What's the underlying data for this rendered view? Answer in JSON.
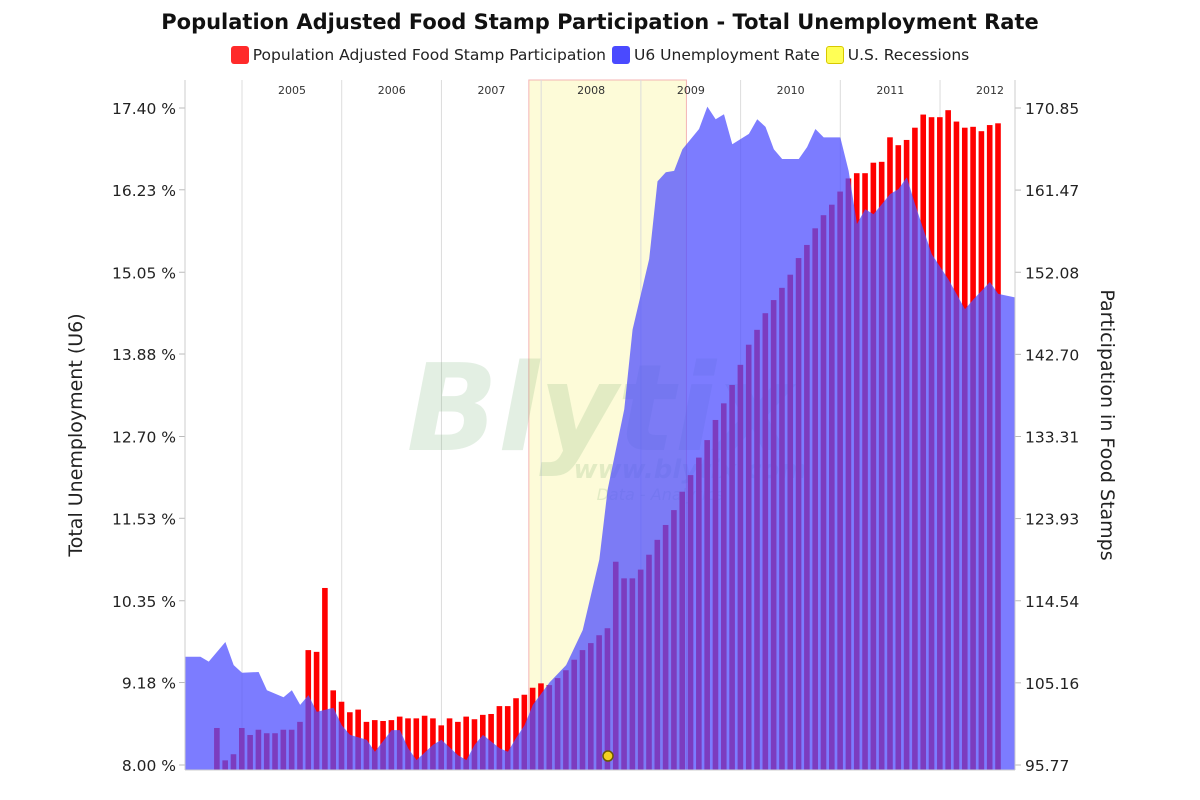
{
  "chart_data": {
    "type": "bar+area",
    "title": "Population Adjusted Food Stamp Participation - Total Unemployment Rate",
    "legend_placement": "top",
    "legend": [
      {
        "label": "Population Adjusted Food Stamp Participation",
        "color": "#ff2a2a"
      },
      {
        "label": "U6 Unemployment Rate",
        "color": "#4a4aff"
      },
      {
        "label": "U.S. Recessions",
        "color": "#ffff55"
      }
    ],
    "left_axis": {
      "label": "Total Unemployment (U6)",
      "range": [
        8.0,
        17.4
      ],
      "ticks": [
        "8.00 %",
        "9.18 %",
        "10.35 %",
        "11.53 %",
        "12.70 %",
        "13.88 %",
        "15.05 %",
        "16.23 %",
        "17.40 %"
      ]
    },
    "right_axis": {
      "label": "Participation in Food Stamps",
      "range": [
        95.77,
        170.85
      ],
      "ticks": [
        "95.77",
        "105.16",
        "114.54",
        "123.93",
        "133.31",
        "142.70",
        "152.08",
        "161.47",
        "170.85"
      ]
    },
    "x_axis": {
      "range": [
        "2004-06",
        "2012-10"
      ],
      "year_labels": [
        "2005",
        "2006",
        "2007",
        "2008",
        "2009",
        "2010",
        "2011",
        "2012"
      ]
    },
    "grid": true,
    "recession": {
      "start": "2007-12",
      "end": "2009-06"
    },
    "colors": {
      "bars": "#ff0000",
      "area": "#5050ff",
      "recession": "#fdfbd8",
      "recession_border": "#f4b4b4"
    },
    "food_stamp_participation": [
      [
        "2004-10",
        100.0
      ],
      [
        "2004-11",
        96.3
      ],
      [
        "2004-12",
        97.0
      ],
      [
        "2005-01",
        100.0
      ],
      [
        "2005-02",
        99.2
      ],
      [
        "2005-03",
        99.8
      ],
      [
        "2005-04",
        99.4
      ],
      [
        "2005-05",
        99.4
      ],
      [
        "2005-06",
        99.8
      ],
      [
        "2005-07",
        99.8
      ],
      [
        "2005-08",
        100.7
      ],
      [
        "2005-09",
        108.9
      ],
      [
        "2005-10",
        108.7
      ],
      [
        "2005-11",
        116.0
      ],
      [
        "2005-12",
        104.3
      ],
      [
        "2006-01",
        103.0
      ],
      [
        "2006-02",
        101.8
      ],
      [
        "2006-03",
        102.1
      ],
      [
        "2006-04",
        100.7
      ],
      [
        "2006-05",
        100.9
      ],
      [
        "2006-06",
        100.8
      ],
      [
        "2006-07",
        100.9
      ],
      [
        "2006-08",
        101.3
      ],
      [
        "2006-09",
        101.1
      ],
      [
        "2006-10",
        101.1
      ],
      [
        "2006-11",
        101.4
      ],
      [
        "2006-12",
        101.1
      ],
      [
        "2007-01",
        100.3
      ],
      [
        "2007-02",
        101.1
      ],
      [
        "2007-03",
        100.7
      ],
      [
        "2007-04",
        101.3
      ],
      [
        "2007-05",
        101.0
      ],
      [
        "2007-06",
        101.5
      ],
      [
        "2007-07",
        101.6
      ],
      [
        "2007-08",
        102.5
      ],
      [
        "2007-09",
        102.5
      ],
      [
        "2007-10",
        103.4
      ],
      [
        "2007-11",
        103.8
      ],
      [
        "2007-12",
        104.6
      ],
      [
        "2008-01",
        105.1
      ],
      [
        "2008-02",
        104.9
      ],
      [
        "2008-03",
        105.7
      ],
      [
        "2008-04",
        106.6
      ],
      [
        "2008-05",
        107.8
      ],
      [
        "2008-06",
        108.9
      ],
      [
        "2008-07",
        109.7
      ],
      [
        "2008-08",
        110.6
      ],
      [
        "2008-09",
        111.4
      ],
      [
        "2008-10",
        119.0
      ],
      [
        "2008-11",
        117.1
      ],
      [
        "2008-12",
        117.1
      ],
      [
        "2009-01",
        118.1
      ],
      [
        "2009-02",
        119.8
      ],
      [
        "2009-03",
        121.5
      ],
      [
        "2009-04",
        123.2
      ],
      [
        "2009-05",
        124.9
      ],
      [
        "2009-06",
        127.0
      ],
      [
        "2009-07",
        128.9
      ],
      [
        "2009-08",
        130.9
      ],
      [
        "2009-09",
        132.9
      ],
      [
        "2009-10",
        135.2
      ],
      [
        "2009-11",
        137.1
      ],
      [
        "2009-12",
        139.2
      ],
      [
        "2010-01",
        141.5
      ],
      [
        "2010-02",
        143.8
      ],
      [
        "2010-03",
        145.5
      ],
      [
        "2010-04",
        147.4
      ],
      [
        "2010-05",
        148.9
      ],
      [
        "2010-06",
        150.3
      ],
      [
        "2010-07",
        151.8
      ],
      [
        "2010-08",
        153.7
      ],
      [
        "2010-09",
        155.2
      ],
      [
        "2010-10",
        157.1
      ],
      [
        "2010-11",
        158.6
      ],
      [
        "2010-12",
        159.8
      ],
      [
        "2011-01",
        161.3
      ],
      [
        "2011-02",
        162.8
      ],
      [
        "2011-03",
        163.4
      ],
      [
        "2011-04",
        163.4
      ],
      [
        "2011-05",
        164.6
      ],
      [
        "2011-06",
        164.7
      ],
      [
        "2011-07",
        167.5
      ],
      [
        "2011-08",
        166.6
      ],
      [
        "2011-09",
        167.2
      ],
      [
        "2011-10",
        168.6
      ],
      [
        "2011-11",
        170.1
      ],
      [
        "2011-12",
        169.8
      ],
      [
        "2012-01",
        169.8
      ],
      [
        "2012-02",
        170.6
      ],
      [
        "2012-03",
        169.3
      ],
      [
        "2012-04",
        168.6
      ],
      [
        "2012-05",
        168.7
      ],
      [
        "2012-06",
        168.2
      ],
      [
        "2012-07",
        168.9
      ],
      [
        "2012-08",
        169.1
      ]
    ],
    "u6_unemployment_rate": [
      [
        "2004-06",
        9.55
      ],
      [
        "2004-08",
        9.55
      ],
      [
        "2004-09",
        9.48
      ],
      [
        "2004-11",
        9.76
      ],
      [
        "2004-12",
        9.43
      ],
      [
        "2005-01",
        9.32
      ],
      [
        "2005-03",
        9.33
      ],
      [
        "2005-04",
        9.07
      ],
      [
        "2005-06",
        8.97
      ],
      [
        "2005-07",
        9.07
      ],
      [
        "2005-08",
        8.86
      ],
      [
        "2005-09",
        9.0
      ],
      [
        "2005-10",
        8.76
      ],
      [
        "2005-12",
        8.82
      ],
      [
        "2006-01",
        8.57
      ],
      [
        "2006-02",
        8.43
      ],
      [
        "2006-04",
        8.36
      ],
      [
        "2006-05",
        8.19
      ],
      [
        "2006-07",
        8.5
      ],
      [
        "2006-08",
        8.5
      ],
      [
        "2006-09",
        8.24
      ],
      [
        "2006-10",
        8.07
      ],
      [
        "2006-12",
        8.29
      ],
      [
        "2007-01",
        8.36
      ],
      [
        "2007-03",
        8.14
      ],
      [
        "2007-04",
        8.07
      ],
      [
        "2007-05",
        8.29
      ],
      [
        "2007-06",
        8.43
      ],
      [
        "2007-08",
        8.24
      ],
      [
        "2007-09",
        8.19
      ],
      [
        "2007-10",
        8.39
      ],
      [
        "2007-11",
        8.57
      ],
      [
        "2007-12",
        8.86
      ],
      [
        "2008-02",
        9.18
      ],
      [
        "2008-04",
        9.43
      ],
      [
        "2008-06",
        9.93
      ],
      [
        "2008-08",
        10.94
      ],
      [
        "2008-09",
        11.94
      ],
      [
        "2008-11",
        13.09
      ],
      [
        "2008-12",
        14.23
      ],
      [
        "2009-02",
        15.24
      ],
      [
        "2009-03",
        16.35
      ],
      [
        "2009-04",
        16.48
      ],
      [
        "2009-05",
        16.5
      ],
      [
        "2009-06",
        16.81
      ],
      [
        "2009-08",
        17.1
      ],
      [
        "2009-09",
        17.42
      ],
      [
        "2009-10",
        17.24
      ],
      [
        "2009-11",
        17.31
      ],
      [
        "2009-12",
        16.88
      ],
      [
        "2010-02",
        17.03
      ],
      [
        "2010-03",
        17.24
      ],
      [
        "2010-04",
        17.13
      ],
      [
        "2010-05",
        16.81
      ],
      [
        "2010-06",
        16.67
      ],
      [
        "2010-08",
        16.67
      ],
      [
        "2010-09",
        16.84
      ],
      [
        "2010-10",
        17.1
      ],
      [
        "2010-11",
        16.98
      ],
      [
        "2011-01",
        16.98
      ],
      [
        "2011-02",
        16.5
      ],
      [
        "2011-03",
        15.74
      ],
      [
        "2011-04",
        15.95
      ],
      [
        "2011-05",
        15.88
      ],
      [
        "2011-07",
        16.17
      ],
      [
        "2011-08",
        16.24
      ],
      [
        "2011-09",
        16.41
      ],
      [
        "2011-10",
        16.02
      ],
      [
        "2011-12",
        15.31
      ],
      [
        "2012-02",
        14.95
      ],
      [
        "2012-04",
        14.52
      ],
      [
        "2012-05",
        14.66
      ],
      [
        "2012-07",
        14.91
      ],
      [
        "2012-08",
        14.74
      ],
      [
        "2012-10",
        14.69
      ]
    ],
    "watermark": {
      "logo": "Blytix",
      "url": "www.blytix.com",
      "tagline": "Data - Analytics"
    }
  }
}
